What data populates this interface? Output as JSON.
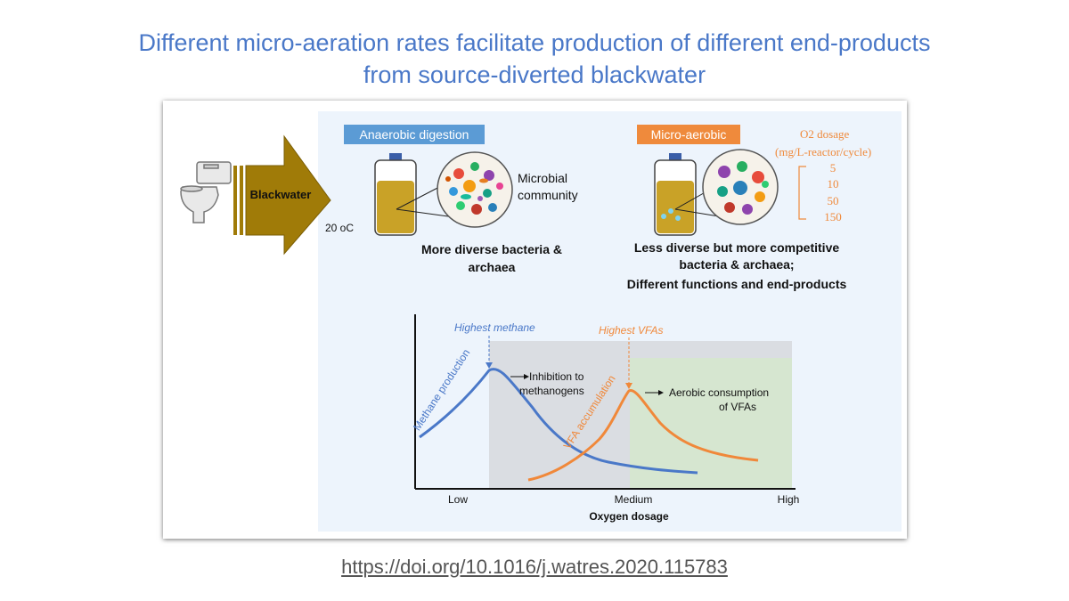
{
  "slide": {
    "title_line1": "Different micro-aeration rates facilitate production of different end-products",
    "title_line2": "from source-diverted blackwater",
    "doi_link": "https://doi.org/10.1016/j.watres.2020.115783"
  },
  "diagram": {
    "input_label": "Blackwater",
    "temperature": "20 oC",
    "anaerobic": {
      "label": "Anaerobic digestion",
      "community_label_1": "Microbial",
      "community_label_2": "community",
      "desc_1": "More diverse bacteria &",
      "desc_2": "archaea"
    },
    "microaerobic": {
      "label": "Micro-aerobic",
      "desc_1": "Less diverse but more competitive",
      "desc_2": "bacteria & archaea;",
      "desc_3": "Different functions and end-products"
    },
    "dosage": {
      "header_1": "O2 dosage",
      "header_2": "(mg/L-reactor/cycle)",
      "values": [
        "5",
        "10",
        "50",
        "150"
      ]
    }
  },
  "chart_data": {
    "type": "line",
    "xlabel": "Oxygen dosage",
    "x_ticks": [
      "Low",
      "Medium",
      "High"
    ],
    "ylabel": "",
    "series": [
      {
        "name": "Methane production",
        "color": "#4a78c8"
      },
      {
        "name": "VFA accumulation",
        "color": "#f0883a"
      }
    ],
    "annotations": {
      "highest_methane": "Highest methane",
      "highest_vfas": "Highest VFAs",
      "inhibition_1": "Inhibition to",
      "inhibition_2": "methanogens",
      "aerobic_1": "Aerobic consumption",
      "aerobic_2": "of VFAs"
    },
    "regions": {
      "inhibition_color": "#dadde2",
      "aerobic_color": "#d6e6d0"
    }
  },
  "colors": {
    "title": "#4a78c8",
    "anaerobic_badge": "#5b9bd5",
    "microaerobic_badge": "#ef8a3c",
    "arrow": "#a07b08",
    "panel_bg": "#edf4fc"
  },
  "icons": [
    "toilet-icon",
    "reactor-bottle-icon",
    "microbe-circle-icon"
  ]
}
